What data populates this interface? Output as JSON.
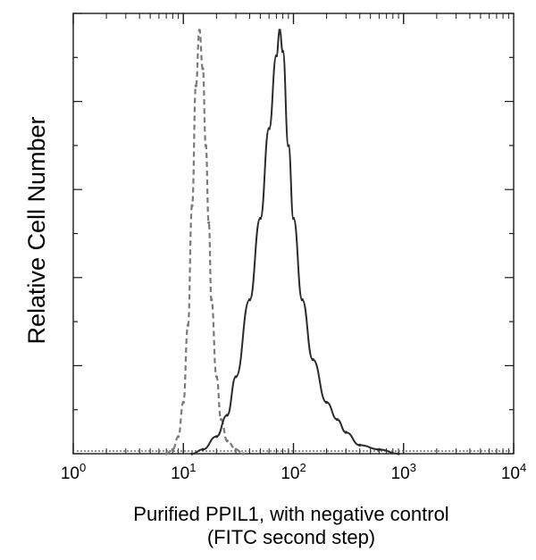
{
  "chart_data": {
    "type": "line",
    "title": "",
    "xlabel_line1": "Purified PPIL1, with negative control",
    "xlabel_line2": "(FITC second step)",
    "ylabel": "Relative Cell Number",
    "x_scale": "log",
    "xlim": [
      1,
      10000
    ],
    "ylim": [
      0,
      100
    ],
    "x_ticks": [
      {
        "value": 1,
        "base": "10",
        "exp": "0"
      },
      {
        "value": 10,
        "base": "10",
        "exp": "1"
      },
      {
        "value": 100,
        "base": "10",
        "exp": "2"
      },
      {
        "value": 1000,
        "base": "10",
        "exp": "3"
      },
      {
        "value": 10000,
        "base": "10",
        "exp": "4"
      }
    ],
    "grid": false,
    "legend": "none",
    "series": [
      {
        "style": "dashed",
        "color": "#7a7a7a",
        "x": [
          7,
          8,
          9,
          10,
          11,
          12,
          13,
          14,
          15,
          16,
          17,
          18,
          20,
          22,
          25,
          30,
          35
        ],
        "y": [
          0,
          1,
          4,
          12,
          30,
          58,
          86,
          99,
          90,
          72,
          54,
          36,
          18,
          8,
          3,
          1,
          0
        ]
      },
      {
        "style": "solid",
        "color": "#2b2b2b",
        "x": [
          12,
          15,
          20,
          25,
          30,
          40,
          50,
          60,
          70,
          75,
          80,
          90,
          100,
          120,
          150,
          200,
          250,
          300,
          400,
          600,
          900
        ],
        "y": [
          0,
          1,
          4,
          9,
          18,
          36,
          55,
          76,
          93,
          99,
          94,
          72,
          55,
          36,
          22,
          12,
          8,
          5,
          2,
          1,
          0
        ]
      }
    ]
  }
}
